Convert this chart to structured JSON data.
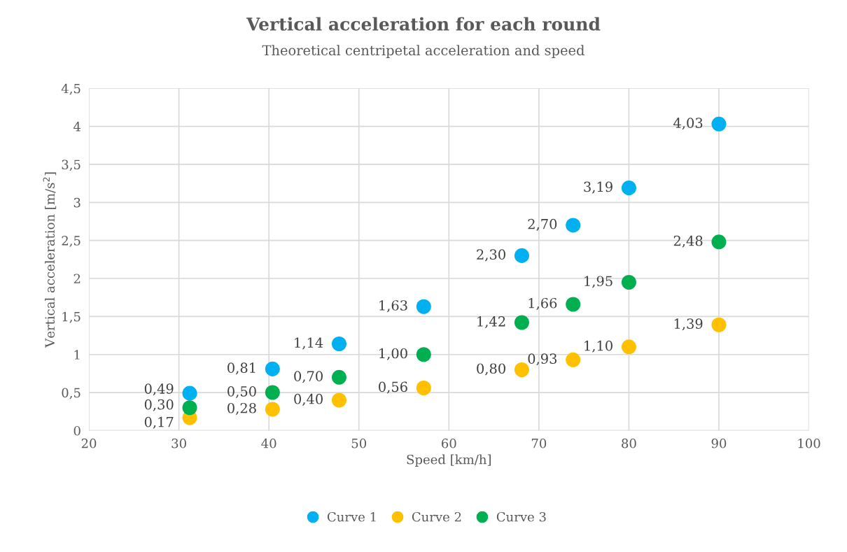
{
  "chart_data": {
    "type": "scatter",
    "title": "Vertical acceleration for each round",
    "subtitle": "Theoretical centripetal acceleration and speed",
    "xlabel": "Speed [km/h]",
    "ylabel": "Vertical acceleration [m/s$^{2}$]",
    "xlim": [
      20,
      100
    ],
    "xticks": [
      20,
      30,
      40,
      50,
      60,
      70,
      80,
      90,
      100
    ],
    "ylim": [
      0,
      4.5
    ],
    "yticks": [
      0,
      {
        "value": 0.5,
        "label": "0,5"
      },
      1,
      {
        "value": 1.5,
        "label": "1,5"
      },
      2,
      {
        "value": 2.5,
        "label": "2,5"
      },
      3,
      {
        "value": 3.5,
        "label": "3,5"
      },
      4,
      {
        "value": 4.5,
        "label": "4,5"
      }
    ],
    "grid": true,
    "legend": "bottom",
    "marker": "circle",
    "series": [
      {
        "name": "Curve 1",
        "color": "#00b0f0",
        "x": [
          31.2,
          40.4,
          47.8,
          57.2,
          68.1,
          73.8,
          80,
          90
        ],
        "values": [
          0.49,
          0.81,
          1.14,
          1.63,
          2.3,
          2.7,
          3.19,
          4.03
        ],
        "value_labels": [
          "0,49",
          "0,81",
          "1,14",
          "1,63",
          "2,30",
          "2,70",
          "3,19",
          "4,03"
        ]
      },
      {
        "name": "Curve 2",
        "color": "#ffc000",
        "x": [
          31.2,
          40.4,
          47.8,
          57.2,
          68.1,
          73.8,
          80,
          90
        ],
        "values": [
          0.17,
          0.28,
          0.4,
          0.56,
          0.8,
          0.93,
          1.1,
          1.39
        ],
        "value_labels": [
          "0,17",
          "0,28",
          "0,40",
          "0,56",
          "0,80",
          "0,93",
          "1,10",
          "1,39"
        ]
      },
      {
        "name": "Curve 3",
        "color": "#00b050",
        "x": [
          31.2,
          40.4,
          47.8,
          57.2,
          68.1,
          73.8,
          80,
          90
        ],
        "values": [
          0.3,
          0.5,
          0.7,
          1.0,
          1.42,
          1.66,
          1.95,
          2.48
        ],
        "value_labels": [
          "0,30",
          "0,50",
          "0,70",
          "1,00",
          "1,42",
          "1,66",
          "1,95",
          "2,48"
        ]
      }
    ]
  }
}
